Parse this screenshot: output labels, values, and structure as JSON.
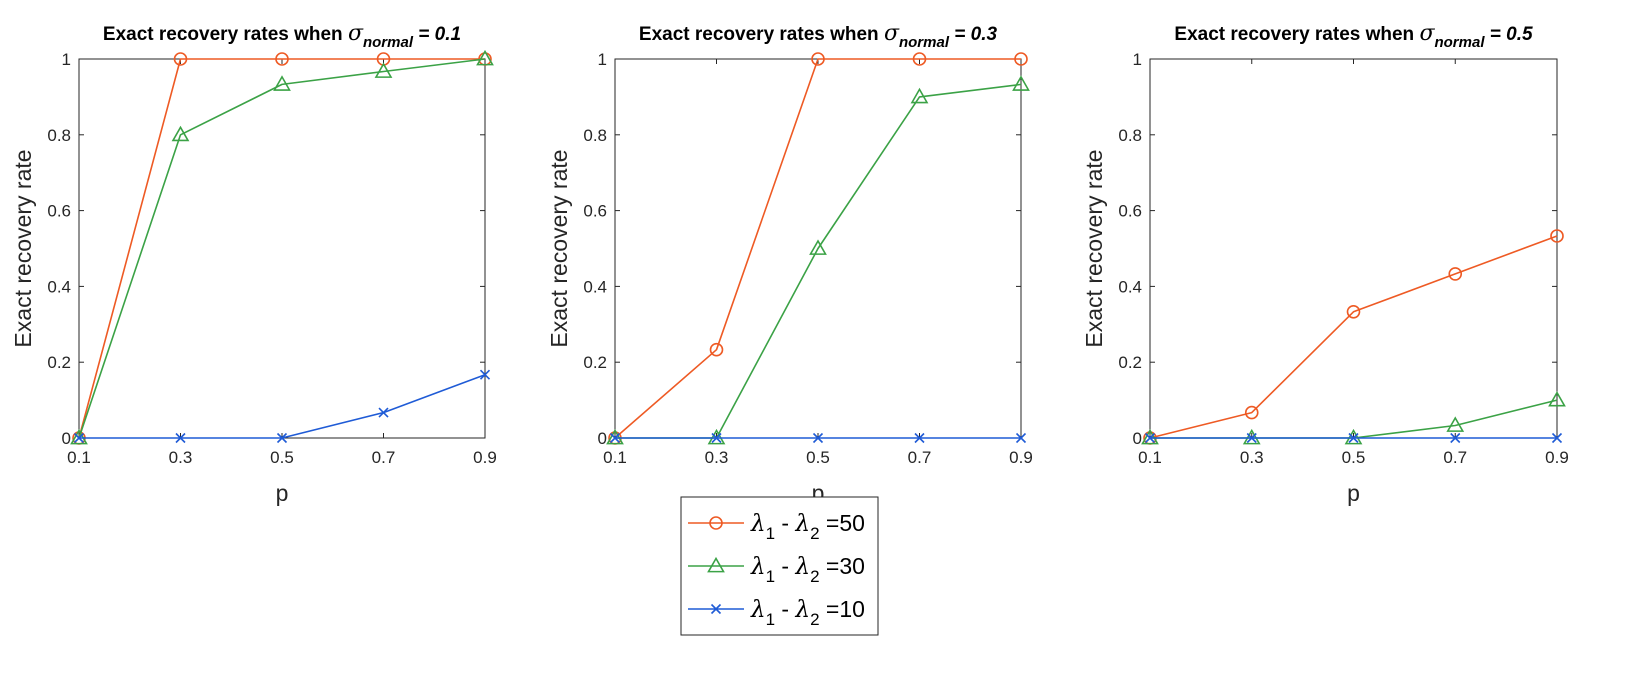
{
  "chart_data": [
    {
      "type": "line",
      "title_prefix": "Exact recovery rates when ",
      "title_symbol": "σ",
      "title_subscript": "normal",
      "title_suffix": " = 0.1",
      "xlabel": "p",
      "ylabel": "Exact recovery rate",
      "x": [
        0.1,
        0.3,
        0.5,
        0.7,
        0.9
      ],
      "x_tick_labels": [
        "0.1",
        "0.3",
        "0.5",
        "0.7",
        "0.9"
      ],
      "xlim": [
        0.1,
        0.9
      ],
      "ylim": [
        0,
        1
      ],
      "y_tick_labels": [
        "0",
        "0.2",
        "0.4",
        "0.6",
        "0.8",
        "1"
      ],
      "series": [
        {
          "name": "λ1 - λ2 =50",
          "marker": "circle",
          "color": "#EE5A24",
          "values": [
            0,
            1,
            1,
            1,
            1
          ]
        },
        {
          "name": "λ1 - λ2 =30",
          "marker": "triangle",
          "color": "#3BA246",
          "values": [
            0,
            0.8,
            0.933,
            0.967,
            1
          ]
        },
        {
          "name": "λ1 - λ2 =10",
          "marker": "x",
          "color": "#1F5BD6",
          "values": [
            0,
            0,
            0,
            0.067,
            0.167
          ]
        }
      ]
    },
    {
      "type": "line",
      "title_prefix": "Exact recovery rates when ",
      "title_symbol": "σ",
      "title_subscript": "normal",
      "title_suffix": " = 0.3",
      "xlabel": "p",
      "ylabel": "Exact recovery rate",
      "x": [
        0.1,
        0.3,
        0.5,
        0.7,
        0.9
      ],
      "x_tick_labels": [
        "0.1",
        "0.3",
        "0.5",
        "0.7",
        "0.9"
      ],
      "xlim": [
        0.1,
        0.9
      ],
      "ylim": [
        0,
        1
      ],
      "y_tick_labels": [
        "0",
        "0.2",
        "0.4",
        "0.6",
        "0.8",
        "1"
      ],
      "series": [
        {
          "name": "λ1 - λ2 =50",
          "marker": "circle",
          "color": "#EE5A24",
          "values": [
            0,
            0.233,
            1,
            1,
            1
          ]
        },
        {
          "name": "λ1 - λ2 =30",
          "marker": "triangle",
          "color": "#3BA246",
          "values": [
            0,
            0,
            0.5,
            0.9,
            0.933
          ]
        },
        {
          "name": "λ1 - λ2 =10",
          "marker": "x",
          "color": "#1F5BD6",
          "values": [
            0,
            0,
            0,
            0,
            0
          ]
        }
      ]
    },
    {
      "type": "line",
      "title_prefix": "Exact recovery rates when ",
      "title_symbol": "σ",
      "title_subscript": "normal",
      "title_suffix": " = 0.5",
      "xlabel": "p",
      "ylabel": "Exact recovery rate",
      "x": [
        0.1,
        0.3,
        0.5,
        0.7,
        0.9
      ],
      "x_tick_labels": [
        "0.1",
        "0.3",
        "0.5",
        "0.7",
        "0.9"
      ],
      "xlim": [
        0.1,
        0.9
      ],
      "ylim": [
        0,
        1
      ],
      "y_tick_labels": [
        "0",
        "0.2",
        "0.4",
        "0.6",
        "0.8",
        "1"
      ],
      "series": [
        {
          "name": "λ1 - λ2 =50",
          "marker": "circle",
          "color": "#EE5A24",
          "values": [
            0,
            0.067,
            0.333,
            0.433,
            0.533
          ]
        },
        {
          "name": "λ1 - λ2 =30",
          "marker": "triangle",
          "color": "#3BA246",
          "values": [
            0,
            0,
            0,
            0.033,
            0.1
          ]
        },
        {
          "name": "λ1 - λ2 =10",
          "marker": "x",
          "color": "#1F5BD6",
          "values": [
            0,
            0,
            0,
            0,
            0
          ]
        }
      ]
    }
  ],
  "legend": {
    "placement": "bottom-center",
    "entries": [
      {
        "symbol": "λ",
        "sub1": "1",
        "mid": " - ",
        "sub2": "2",
        "suffix": " =50",
        "marker": "circle",
        "color": "#EE5A24"
      },
      {
        "symbol": "λ",
        "sub1": "1",
        "mid": " - ",
        "sub2": "2",
        "suffix": " =30",
        "marker": "triangle",
        "color": "#3BA246"
      },
      {
        "symbol": "λ",
        "sub1": "1",
        "mid": " - ",
        "sub2": "2",
        "suffix": " =10",
        "marker": "x",
        "color": "#1F5BD6"
      }
    ]
  }
}
